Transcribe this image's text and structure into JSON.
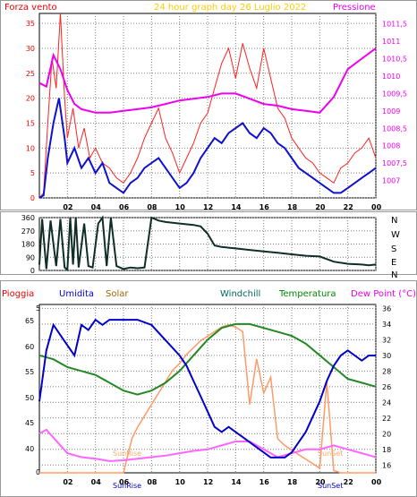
{
  "chart_data": [
    {
      "type": "line",
      "title": "24 hour graph day 26 Luglio 2022",
      "left_label": "Forza vento",
      "right_label": "Pressione",
      "x_ticks": [
        "02",
        "04",
        "06",
        "08",
        "10",
        "12",
        "14",
        "16",
        "18",
        "20",
        "22",
        "00"
      ],
      "y_left_ticks": [
        "0",
        "5",
        "10",
        "15",
        "20",
        "25",
        "30",
        "35"
      ],
      "y_right_ticks": [
        "1007",
        "1007,5",
        "1008",
        "1008,5",
        "1009",
        "1009,5",
        "1010",
        "1010,5",
        "1011",
        "1011,5"
      ],
      "ylim_left": [
        0,
        37
      ],
      "ylim_right": [
        1006.5,
        1011.8
      ],
      "colors": {
        "gust": "#ff2020",
        "speed": "#1010d0",
        "pressure": "#ee00ee",
        "grid": "#7f7f7f"
      },
      "pressure": [
        [
          0,
          1009.8
        ],
        [
          0.5,
          1009.7
        ],
        [
          1,
          1010.6
        ],
        [
          1.5,
          1010.2
        ],
        [
          2,
          1009.6
        ],
        [
          2.5,
          1009.2
        ],
        [
          3,
          1009.05
        ],
        [
          4,
          1008.95
        ],
        [
          5,
          1008.95
        ],
        [
          6,
          1009.0
        ],
        [
          7,
          1009.05
        ],
        [
          8,
          1009.1
        ],
        [
          9,
          1009.2
        ],
        [
          10,
          1009.3
        ],
        [
          11,
          1009.35
        ],
        [
          12,
          1009.4
        ],
        [
          13,
          1009.5
        ],
        [
          14,
          1009.5
        ],
        [
          15,
          1009.35
        ],
        [
          16,
          1009.2
        ],
        [
          17,
          1009.15
        ],
        [
          18,
          1009.05
        ],
        [
          19,
          1009.0
        ],
        [
          20,
          1008.95
        ],
        [
          21,
          1009.4
        ],
        [
          22,
          1010.2
        ],
        [
          23,
          1010.5
        ],
        [
          24,
          1010.8
        ]
      ],
      "speed": [
        [
          0,
          0
        ],
        [
          0.3,
          0.5
        ],
        [
          0.6,
          8
        ],
        [
          1,
          15
        ],
        [
          1.4,
          20
        ],
        [
          1.8,
          12
        ],
        [
          2,
          7
        ],
        [
          2.5,
          10
        ],
        [
          3,
          6
        ],
        [
          3.5,
          8
        ],
        [
          4,
          5
        ],
        [
          4.5,
          7
        ],
        [
          5,
          3
        ],
        [
          5.5,
          2
        ],
        [
          6,
          1
        ],
        [
          6.5,
          3
        ],
        [
          7,
          4
        ],
        [
          7.5,
          6
        ],
        [
          8,
          7
        ],
        [
          8.5,
          8
        ],
        [
          9,
          6
        ],
        [
          9.5,
          4
        ],
        [
          10,
          2
        ],
        [
          10.5,
          3
        ],
        [
          11,
          5
        ],
        [
          11.5,
          8
        ],
        [
          12,
          10
        ],
        [
          12.5,
          12
        ],
        [
          13,
          11
        ],
        [
          13.5,
          13
        ],
        [
          14,
          14
        ],
        [
          14.5,
          15
        ],
        [
          15,
          13
        ],
        [
          15.5,
          12
        ],
        [
          16,
          14
        ],
        [
          16.5,
          13
        ],
        [
          17,
          11
        ],
        [
          17.5,
          10
        ],
        [
          18,
          8
        ],
        [
          18.5,
          6
        ],
        [
          19,
          5
        ],
        [
          19.5,
          4
        ],
        [
          20,
          3
        ],
        [
          20.5,
          2
        ],
        [
          21,
          1
        ],
        [
          21.5,
          1
        ],
        [
          22,
          2
        ],
        [
          22.5,
          3
        ],
        [
          23,
          4
        ],
        [
          23.5,
          5
        ],
        [
          24,
          6
        ]
      ],
      "gust": [
        [
          0,
          0
        ],
        [
          0.3,
          1
        ],
        [
          0.6,
          15
        ],
        [
          0.9,
          28
        ],
        [
          1.2,
          22
        ],
        [
          1.5,
          37
        ],
        [
          1.8,
          20
        ],
        [
          2,
          12
        ],
        [
          2.4,
          18
        ],
        [
          2.8,
          10
        ],
        [
          3.2,
          14
        ],
        [
          3.6,
          8
        ],
        [
          4,
          10
        ],
        [
          4.5,
          7
        ],
        [
          5,
          6
        ],
        [
          5.5,
          4
        ],
        [
          6,
          3
        ],
        [
          6.5,
          5
        ],
        [
          7,
          8
        ],
        [
          7.5,
          12
        ],
        [
          8,
          15
        ],
        [
          8.5,
          18
        ],
        [
          9,
          12
        ],
        [
          9.5,
          9
        ],
        [
          10,
          5
        ],
        [
          10.5,
          8
        ],
        [
          11,
          11
        ],
        [
          11.5,
          15
        ],
        [
          12,
          17
        ],
        [
          12.5,
          22
        ],
        [
          13,
          27
        ],
        [
          13.5,
          30
        ],
        [
          14,
          24
        ],
        [
          14.5,
          31
        ],
        [
          15,
          26
        ],
        [
          15.5,
          22
        ],
        [
          16,
          30
        ],
        [
          16.5,
          24
        ],
        [
          17,
          18
        ],
        [
          17.5,
          16
        ],
        [
          18,
          12
        ],
        [
          18.5,
          10
        ],
        [
          19,
          8
        ],
        [
          19.5,
          7
        ],
        [
          20,
          5
        ],
        [
          20.5,
          4
        ],
        [
          21,
          3
        ],
        [
          21.5,
          6
        ],
        [
          22,
          7
        ],
        [
          22.5,
          9
        ],
        [
          23,
          10
        ],
        [
          23.5,
          12
        ],
        [
          24,
          8
        ]
      ]
    },
    {
      "type": "line",
      "direction_labels": [
        "N",
        "W",
        "S",
        "E",
        "N"
      ],
      "y_ticks": [
        "0",
        "90",
        "180",
        "270",
        "360"
      ],
      "ylim": [
        0,
        360
      ],
      "color": "#102e28",
      "direction": [
        [
          0,
          40
        ],
        [
          0.2,
          350
        ],
        [
          0.5,
          10
        ],
        [
          0.8,
          340
        ],
        [
          1.2,
          30
        ],
        [
          1.5,
          350
        ],
        [
          1.8,
          20
        ],
        [
          2,
          5
        ],
        [
          2.2,
          360
        ],
        [
          2.4,
          40
        ],
        [
          2.6,
          360
        ],
        [
          2.8,
          20
        ],
        [
          3.2,
          320
        ],
        [
          3.5,
          30
        ],
        [
          3.8,
          20
        ],
        [
          4.2,
          320
        ],
        [
          4.5,
          360
        ],
        [
          4.8,
          30
        ],
        [
          5.1,
          360
        ],
        [
          5.5,
          30
        ],
        [
          6,
          10
        ],
        [
          6.5,
          20
        ],
        [
          7,
          15
        ],
        [
          7.5,
          20
        ],
        [
          8,
          360
        ],
        [
          8.5,
          340
        ],
        [
          9,
          330
        ],
        [
          10,
          320
        ],
        [
          11,
          310
        ],
        [
          11.5,
          300
        ],
        [
          12,
          250
        ],
        [
          12.5,
          170
        ],
        [
          13,
          160
        ],
        [
          14,
          150
        ],
        [
          15,
          140
        ],
        [
          16,
          130
        ],
        [
          17,
          120
        ],
        [
          18,
          110
        ],
        [
          19,
          100
        ],
        [
          20,
          95
        ],
        [
          21,
          60
        ],
        [
          22,
          45
        ],
        [
          23,
          40
        ],
        [
          23.5,
          35
        ],
        [
          24,
          40
        ]
      ]
    },
    {
      "type": "line",
      "legend": [
        "Pioggia",
        "Umidita",
        "Solar",
        "Windchill",
        "Temperatura",
        "Dew Point (°C)"
      ],
      "x_ticks": [
        "02",
        "04",
        "06",
        "08",
        "10",
        "12",
        "14",
        "16",
        "18",
        "20",
        "22",
        "00"
      ],
      "y_left_ticks": [
        "0",
        "5",
        "40",
        "45",
        "50",
        "55",
        "60",
        "65"
      ],
      "y_right_ticks": [
        "16",
        "18",
        "20",
        "22",
        "24",
        "26",
        "28",
        "30",
        "32",
        "34",
        "36"
      ],
      "annotations": [
        "SunRise",
        "SunSet"
      ],
      "colors": {
        "rain": "#ee00ee",
        "humidity": "#0000cc",
        "solar": "#ff9966",
        "temperature": "#228822",
        "dewpoint": "#ff66ff",
        "grid": "#7f7f7f"
      },
      "humidity": [
        [
          0,
          51
        ],
        [
          0.5,
          61
        ],
        [
          1,
          66
        ],
        [
          1.5,
          64
        ],
        [
          2,
          62
        ],
        [
          2.5,
          60
        ],
        [
          3,
          66
        ],
        [
          3.5,
          65
        ],
        [
          4,
          67
        ],
        [
          4.5,
          66
        ],
        [
          5,
          67
        ],
        [
          6,
          67
        ],
        [
          7,
          67
        ],
        [
          8,
          66
        ],
        [
          9,
          63
        ],
        [
          10,
          60
        ],
        [
          10.5,
          58
        ],
        [
          11,
          55
        ],
        [
          11.5,
          52
        ],
        [
          12,
          49
        ],
        [
          12.5,
          46
        ],
        [
          13,
          45
        ],
        [
          13.5,
          46
        ],
        [
          14,
          45
        ],
        [
          14.5,
          44
        ],
        [
          15,
          43
        ],
        [
          15.5,
          42
        ],
        [
          16,
          41
        ],
        [
          16.5,
          40
        ],
        [
          17,
          40
        ],
        [
          17.5,
          40
        ],
        [
          18,
          41
        ],
        [
          18.5,
          43
        ],
        [
          19,
          45
        ],
        [
          19.5,
          48
        ],
        [
          20,
          51
        ],
        [
          20.5,
          55
        ],
        [
          21,
          58
        ],
        [
          21.5,
          60
        ],
        [
          22,
          61
        ],
        [
          22.5,
          60
        ],
        [
          23,
          59
        ],
        [
          23.5,
          60
        ],
        [
          24,
          60
        ]
      ],
      "temperature": [
        [
          0,
          30.0
        ],
        [
          1,
          29.5
        ],
        [
          2,
          28.5
        ],
        [
          3,
          28.0
        ],
        [
          4,
          27.5
        ],
        [
          5,
          26.5
        ],
        [
          6,
          25.5
        ],
        [
          7,
          25.0
        ],
        [
          8,
          25.5
        ],
        [
          9,
          26.5
        ],
        [
          10,
          28.0
        ],
        [
          11,
          30.0
        ],
        [
          12,
          32.0
        ],
        [
          13,
          33.5
        ],
        [
          14,
          34.0
        ],
        [
          15,
          34.0
        ],
        [
          16,
          33.5
        ],
        [
          17,
          33.0
        ],
        [
          18,
          32.5
        ],
        [
          19,
          31.5
        ],
        [
          20,
          30.0
        ],
        [
          21,
          28.5
        ],
        [
          22,
          27.0
        ],
        [
          23,
          26.5
        ],
        [
          24,
          26.0
        ]
      ],
      "dewpoint": [
        [
          0,
          20.0
        ],
        [
          0.5,
          20.5
        ],
        [
          1,
          19.5
        ],
        [
          1.5,
          18.5
        ],
        [
          2,
          17.5
        ],
        [
          3,
          17.0
        ],
        [
          4,
          16.8
        ],
        [
          5,
          16.5
        ],
        [
          6,
          16.6
        ],
        [
          7,
          16.8
        ],
        [
          8,
          17.0
        ],
        [
          9,
          17.2
        ],
        [
          10,
          17.5
        ],
        [
          11,
          17.8
        ],
        [
          12,
          18.0
        ],
        [
          13,
          18.5
        ],
        [
          14,
          19.0
        ],
        [
          15,
          19.0
        ],
        [
          16,
          18.0
        ],
        [
          17,
          17.0
        ],
        [
          18,
          17.5
        ],
        [
          19,
          18.0
        ],
        [
          20,
          18.0
        ],
        [
          21,
          18.5
        ],
        [
          22,
          18.0
        ],
        [
          23,
          17.5
        ],
        [
          24,
          17.0
        ]
      ],
      "solar": [
        [
          0,
          0
        ],
        [
          6,
          0
        ],
        [
          6.2,
          50
        ],
        [
          6.6,
          150
        ],
        [
          7,
          200
        ],
        [
          7.5,
          250
        ],
        [
          8,
          300
        ],
        [
          8.5,
          350
        ],
        [
          9,
          400
        ],
        [
          9.5,
          450
        ],
        [
          10,
          480
        ],
        [
          10.5,
          520
        ],
        [
          11,
          550
        ],
        [
          11.5,
          580
        ],
        [
          12,
          600
        ],
        [
          12.5,
          620
        ],
        [
          13,
          640
        ],
        [
          13.5,
          650
        ],
        [
          14,
          640
        ],
        [
          14.5,
          620
        ],
        [
          15,
          300
        ],
        [
          15.5,
          500
        ],
        [
          16,
          350
        ],
        [
          16.5,
          420
        ],
        [
          17,
          150
        ],
        [
          17.5,
          120
        ],
        [
          18,
          100
        ],
        [
          18.5,
          80
        ],
        [
          19,
          60
        ],
        [
          19.5,
          40
        ],
        [
          20,
          20
        ],
        [
          20.5,
          400
        ],
        [
          21,
          10
        ],
        [
          21.5,
          0
        ],
        [
          24,
          0
        ]
      ]
    }
  ]
}
